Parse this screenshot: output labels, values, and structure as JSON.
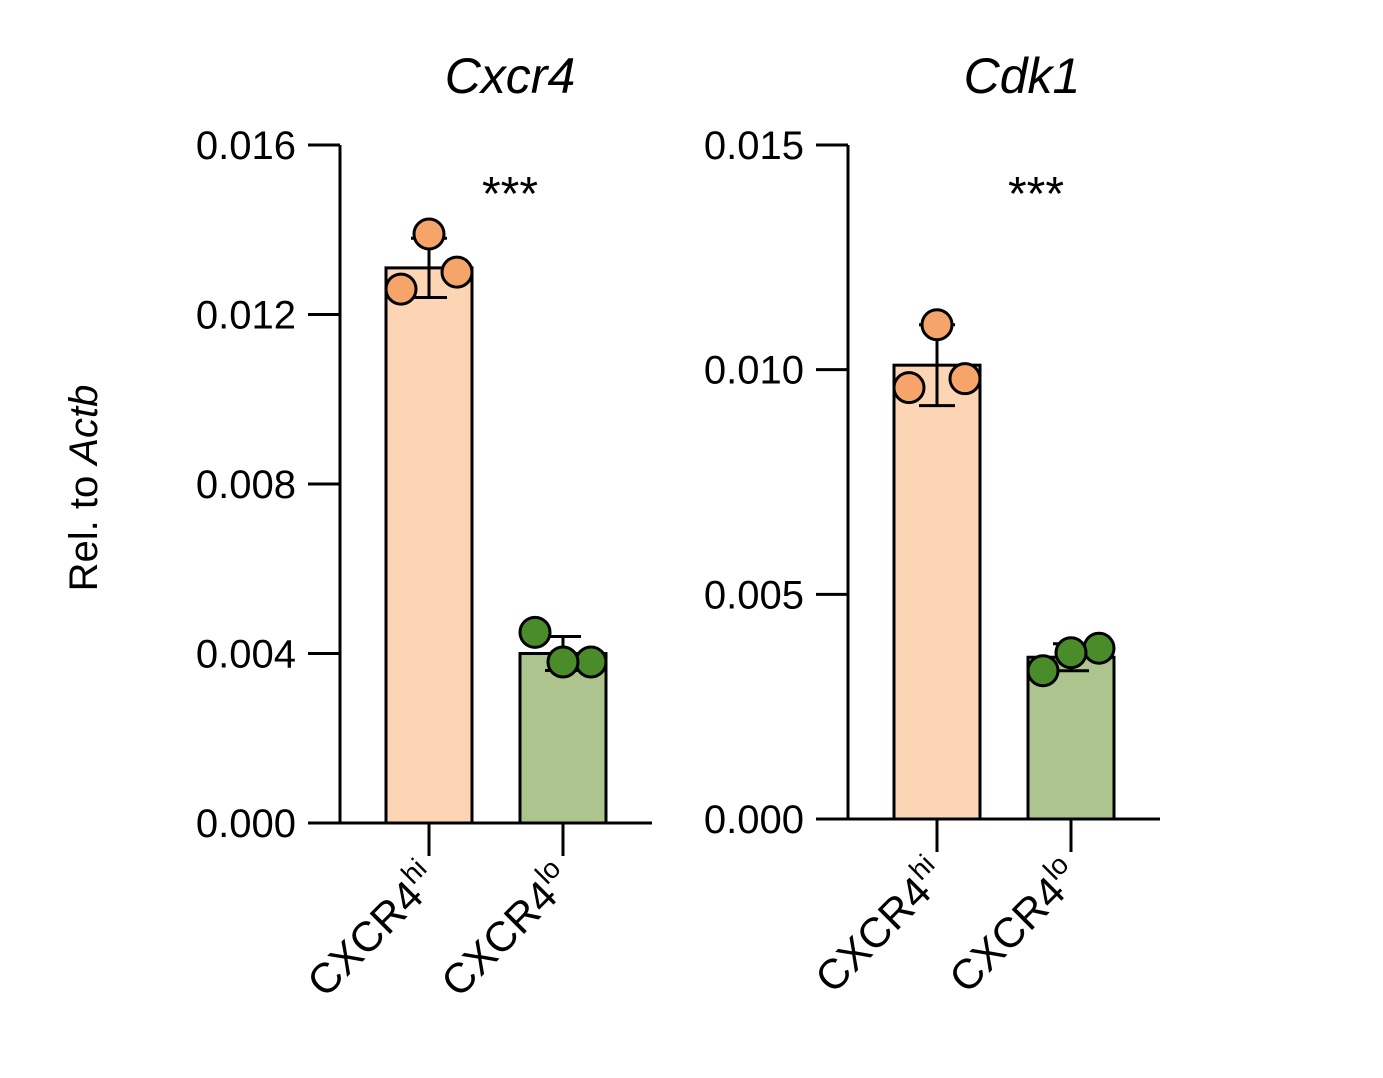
{
  "chart_data": [
    {
      "type": "bar",
      "title": "Cxcr4",
      "ylabel_prefix": "Rel. to ",
      "ylabel_italic": "Actb",
      "categories": [
        {
          "base": "CXCR4",
          "sup": "hi"
        },
        {
          "base": "CXCR4",
          "sup": "lo"
        }
      ],
      "values": [
        0.0131,
        0.004
      ],
      "errors": [
        0.0007,
        0.0004
      ],
      "points": [
        [
          0.0139,
          0.013,
          0.0126
        ],
        [
          0.0045,
          0.0038,
          0.0038
        ]
      ],
      "ylim": [
        0,
        0.016
      ],
      "yticks": [
        "0.000",
        "0.004",
        "0.008",
        "0.012",
        "0.016"
      ],
      "significance": "***",
      "bar_colors": [
        "#fcd5b5",
        "#aec48e"
      ],
      "point_colors": [
        "#f5a46a",
        "#4a8c2a"
      ]
    },
    {
      "type": "bar",
      "title": "Cdk1",
      "categories": [
        {
          "base": "CXCR4",
          "sup": "hi"
        },
        {
          "base": "CXCR4",
          "sup": "lo"
        }
      ],
      "values": [
        0.0101,
        0.0036
      ],
      "errors": [
        0.0009,
        0.0003
      ],
      "points": [
        [
          0.011,
          0.0098,
          0.0096
        ],
        [
          0.0038,
          0.0037,
          0.0033
        ]
      ],
      "ylim": [
        0,
        0.015
      ],
      "yticks": [
        "0.000",
        "0.005",
        "0.010",
        "0.015"
      ],
      "significance": "***",
      "bar_colors": [
        "#fcd5b5",
        "#aec48e"
      ],
      "point_colors": [
        "#f5a46a",
        "#4a8c2a"
      ]
    }
  ]
}
